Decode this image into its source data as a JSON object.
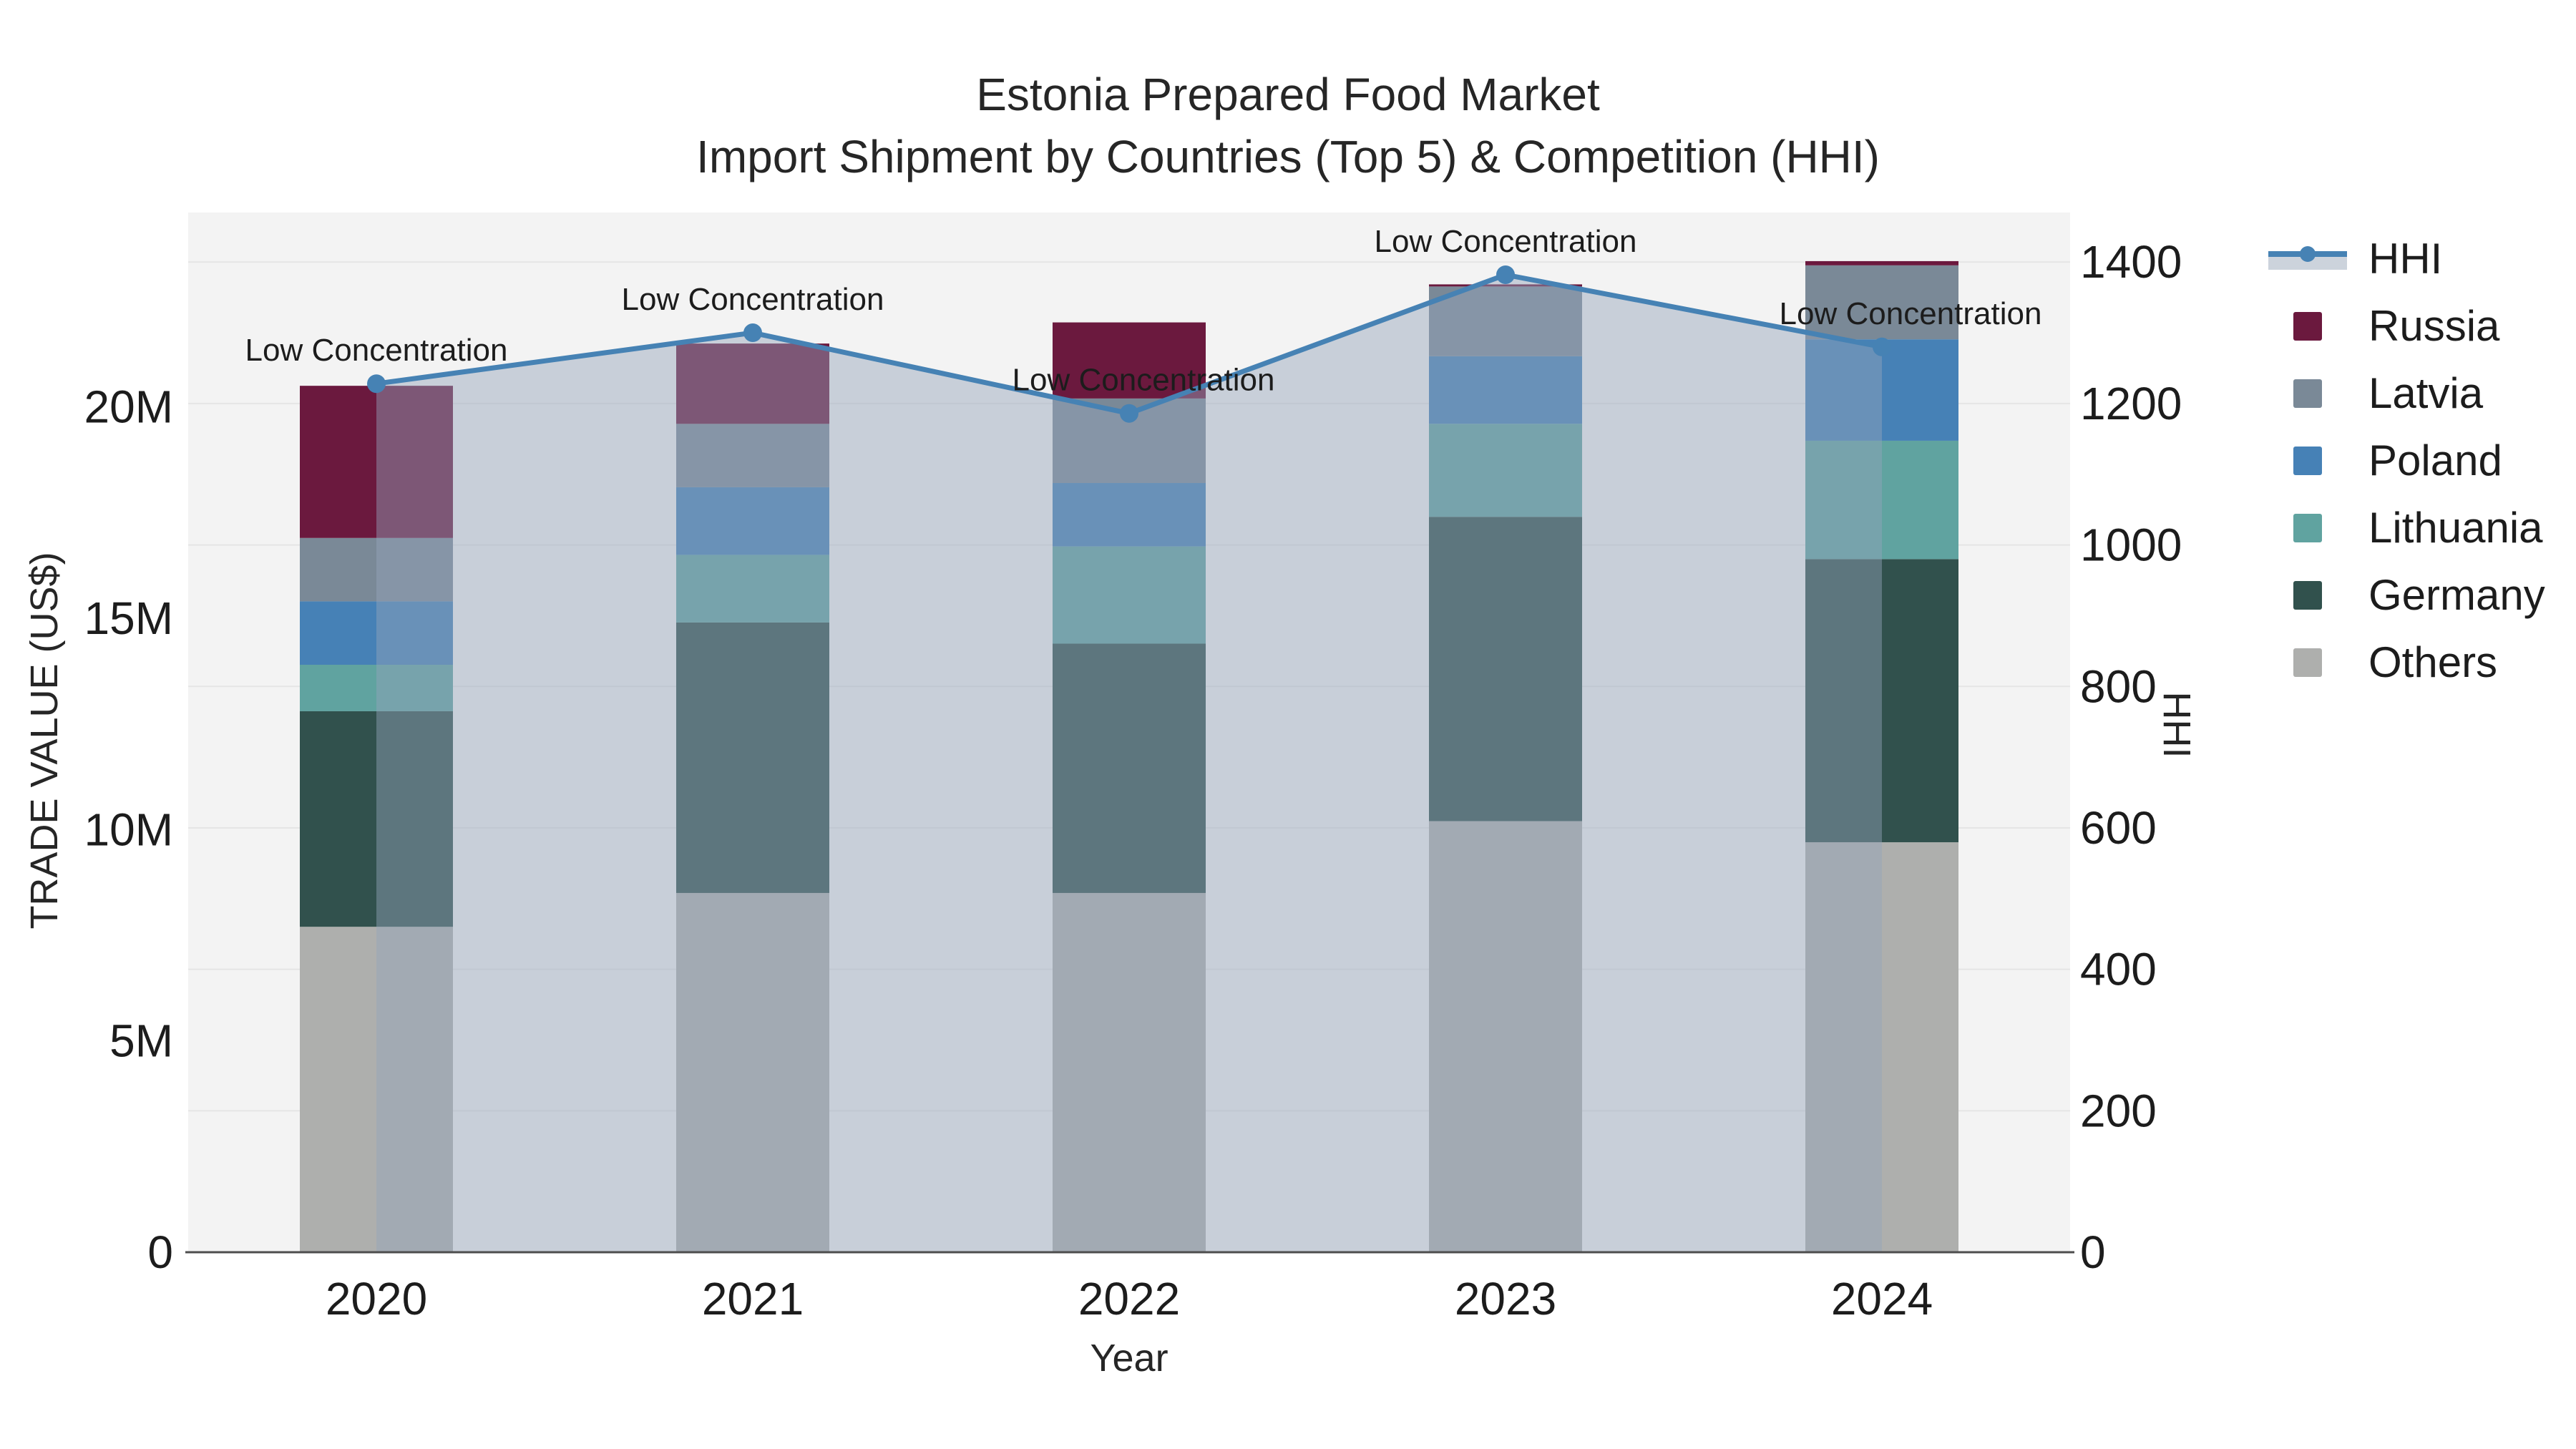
{
  "title": {
    "line1": "Estonia Prepared Food Market",
    "line2": "Import Shipment by Countries (Top 5) & Competition (HHI)"
  },
  "axes": {
    "left": {
      "title": "TRADE VALUE (US$)",
      "tick_labels": [
        "0",
        "5M",
        "10M",
        "15M",
        "20M"
      ],
      "tick_values": [
        0,
        5,
        10,
        15,
        20
      ],
      "max": 24.6
    },
    "right": {
      "title": "HHI",
      "tick_labels": [
        "0",
        "200",
        "400",
        "600",
        "800",
        "1000",
        "1200",
        "1400"
      ],
      "tick_values": [
        0,
        200,
        400,
        600,
        800,
        1000,
        1200,
        1400
      ],
      "max": 1470
    },
    "x": {
      "title": "Year",
      "categories": [
        "2020",
        "2021",
        "2022",
        "2023",
        "2024"
      ]
    }
  },
  "chart_data": {
    "type": "bar+line",
    "subtype": "stacked bars (left axis, trade value in millions US$) with HHI line on right axis and translucent area fill to zero",
    "categories": [
      "2020",
      "2021",
      "2022",
      "2023",
      "2024"
    ],
    "unit": "M US$",
    "series": [
      {
        "name": "Others",
        "color": "#aeafad",
        "values": [
          7.7,
          8.5,
          8.5,
          10.2,
          9.7
        ]
      },
      {
        "name": "Germany",
        "color": "#31514d",
        "values": [
          5.1,
          6.4,
          5.9,
          7.2,
          6.7
        ]
      },
      {
        "name": "Lithuania",
        "color": "#60a3a0",
        "values": [
          1.1,
          1.6,
          2.3,
          2.2,
          2.8
        ]
      },
      {
        "name": "Poland",
        "color": "#4681b6",
        "values": [
          1.5,
          1.6,
          1.5,
          1.6,
          2.4
        ]
      },
      {
        "name": "Latvia",
        "color": "#7a8997",
        "values": [
          1.5,
          1.5,
          2.0,
          1.65,
          1.75
        ]
      },
      {
        "name": "Russia",
        "color": "#6b193e",
        "values": [
          3.6,
          1.9,
          1.8,
          0.05,
          0.1
        ]
      }
    ],
    "line": {
      "name": "HHI",
      "color": "#4682b4",
      "fill_color": "rgba(148,164,186,0.45)",
      "axis": "right",
      "values": [
        1228,
        1300,
        1186,
        1382,
        1280
      ]
    },
    "annotations": {
      "text": "Low Concentration",
      "dx": [
        0,
        0,
        20,
        0,
        40
      ]
    },
    "layout_hints": {
      "legend_position": "right",
      "grid": "horizontal lines at every 200 HHI",
      "plot_bg": "#f3f3f3"
    }
  },
  "legend": {
    "items": [
      {
        "label": "HHI",
        "type": "line",
        "color": "#4682b4"
      },
      {
        "label": "Russia",
        "type": "swatch",
        "color": "#6b193e"
      },
      {
        "label": "Latvia",
        "type": "swatch",
        "color": "#7a8997"
      },
      {
        "label": "Poland",
        "type": "swatch",
        "color": "#4681b6"
      },
      {
        "label": "Lithuania",
        "type": "swatch",
        "color": "#60a3a0"
      },
      {
        "label": "Germany",
        "type": "swatch",
        "color": "#31514d"
      },
      {
        "label": "Others",
        "type": "swatch",
        "color": "#aeafad"
      }
    ]
  },
  "colors": {
    "page_bg": "#ffffff",
    "plot_bg": "#f3f3f3",
    "gridline": "#e5e5e5",
    "axis_line": "#4d4d4d",
    "tick_text": "#1c1c1c",
    "hhi_line": "#4682b4",
    "hhi_fill": "rgba(148,164,186,0.45)"
  }
}
